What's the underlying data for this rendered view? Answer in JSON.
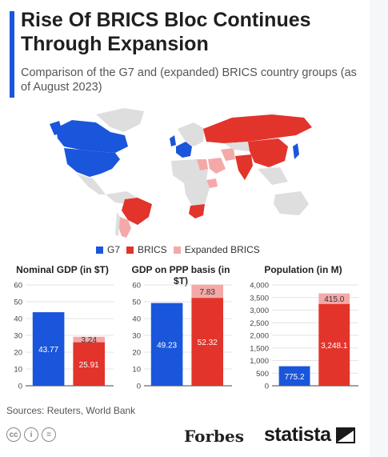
{
  "header": {
    "title": "Rise Of BRICS Bloc Continues Through Expansion",
    "subtitle": "Comparison of the G7 and (expanded) BRICS country groups (as of August 2023)"
  },
  "colors": {
    "g7": "#1a56db",
    "brics": "#e2342b",
    "expanded": "#f4a9a8",
    "other": "#dedede"
  },
  "legend": {
    "g7": "G7",
    "brics": "BRICS",
    "expanded": "Expanded BRICS"
  },
  "chart_data": [
    {
      "type": "bar",
      "title": "Nominal GDP (in $T)",
      "categories": [
        "G7",
        "BRICS"
      ],
      "series": [
        {
          "name": "G7",
          "values": [
            43.77,
            0
          ]
        },
        {
          "name": "BRICS",
          "values": [
            0,
            25.91
          ]
        },
        {
          "name": "Expanded BRICS",
          "values": [
            0,
            3.24
          ]
        }
      ],
      "labels": [
        "43.77",
        "25.91",
        "3.24"
      ],
      "ylim": [
        0,
        60
      ],
      "yticks": [
        "0",
        "10",
        "20",
        "30",
        "40",
        "50",
        "60"
      ],
      "stacked": true
    },
    {
      "type": "bar",
      "title": "GDP on PPP basis (in $T)",
      "categories": [
        "G7",
        "BRICS"
      ],
      "series": [
        {
          "name": "G7",
          "values": [
            49.23,
            0
          ]
        },
        {
          "name": "BRICS",
          "values": [
            0,
            52.32
          ]
        },
        {
          "name": "Expanded BRICS",
          "values": [
            0,
            7.83
          ]
        }
      ],
      "labels": [
        "49.23",
        "52.32",
        "7.83"
      ],
      "ylim": [
        0,
        60
      ],
      "yticks": [
        "0",
        "10",
        "20",
        "30",
        "40",
        "50",
        "60"
      ],
      "stacked": true
    },
    {
      "type": "bar",
      "title": "Population (in M)",
      "categories": [
        "G7",
        "BRICS"
      ],
      "series": [
        {
          "name": "G7",
          "values": [
            775.2,
            0
          ]
        },
        {
          "name": "BRICS",
          "values": [
            0,
            3248.1
          ]
        },
        {
          "name": "Expanded BRICS",
          "values": [
            0,
            415.0
          ]
        }
      ],
      "labels": [
        "775.2",
        "3,248.1",
        "415.0"
      ],
      "ylim": [
        0,
        4000
      ],
      "yticks": [
        "0",
        "500",
        "1,000",
        "1,500",
        "2,000",
        "2,500",
        "3,000",
        "3,500",
        "4,000"
      ],
      "stacked": true
    }
  ],
  "footer": {
    "sources": "Sources: Reuters, World Bank",
    "forbes": "Forbes",
    "statista": "statista",
    "cc_icons": [
      "cc-icon",
      "by-icon",
      "nd-icon"
    ]
  }
}
